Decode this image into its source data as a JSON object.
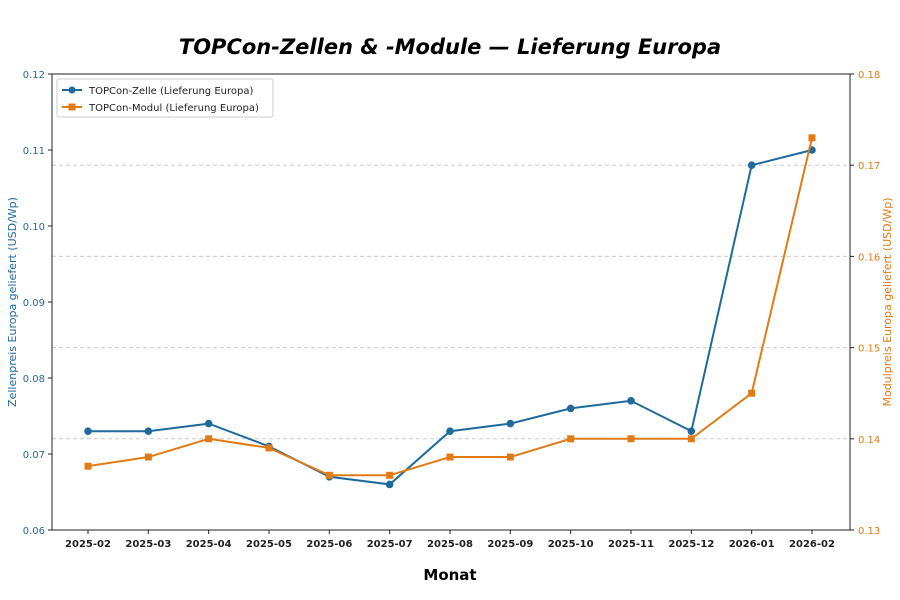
{
  "chart_data": {
    "type": "line",
    "title": "TOPCon-Zellen & -Module — Lieferung Europa",
    "xlabel": "Monat",
    "ylabel_left": "Zellenpreis Europa geliefert (USD/Wp)",
    "ylabel_right": "Modulpreis Europa geliefert (USD/Wp)",
    "categories": [
      "2025-02",
      "2025-03",
      "2025-04",
      "2025-05",
      "2025-06",
      "2025-07",
      "2025-08",
      "2025-09",
      "2025-10",
      "2025-11",
      "2025-12",
      "2026-01",
      "2026-02"
    ],
    "ylim_left": [
      0.06,
      0.12
    ],
    "yticks_left": [
      "0.06",
      "0.07",
      "0.08",
      "0.09",
      "0.10",
      "0.11",
      "0.12"
    ],
    "ylim_right": [
      0.13,
      0.18
    ],
    "yticks_right": [
      "0.13",
      "0.14",
      "0.15",
      "0.16",
      "0.17",
      "0.18"
    ],
    "grid": "dashed horizontal (right axis)",
    "legend_position": "top-left",
    "series": [
      {
        "name": "TOPCon-Zelle (Lieferung Europa)",
        "axis": "left",
        "color": "#1f6a9a",
        "marker": "circle",
        "values": [
          0.073,
          0.073,
          0.074,
          0.071,
          0.067,
          0.066,
          0.073,
          0.074,
          0.076,
          0.077,
          0.073,
          0.108,
          0.11
        ]
      },
      {
        "name": "TOPCon-Modul (Lieferung Europa)",
        "axis": "right",
        "color": "#e07b16",
        "marker": "square",
        "values": [
          0.137,
          0.138,
          0.14,
          0.139,
          0.136,
          0.136,
          0.138,
          0.138,
          0.14,
          0.14,
          0.14,
          0.145,
          0.173
        ]
      }
    ]
  }
}
